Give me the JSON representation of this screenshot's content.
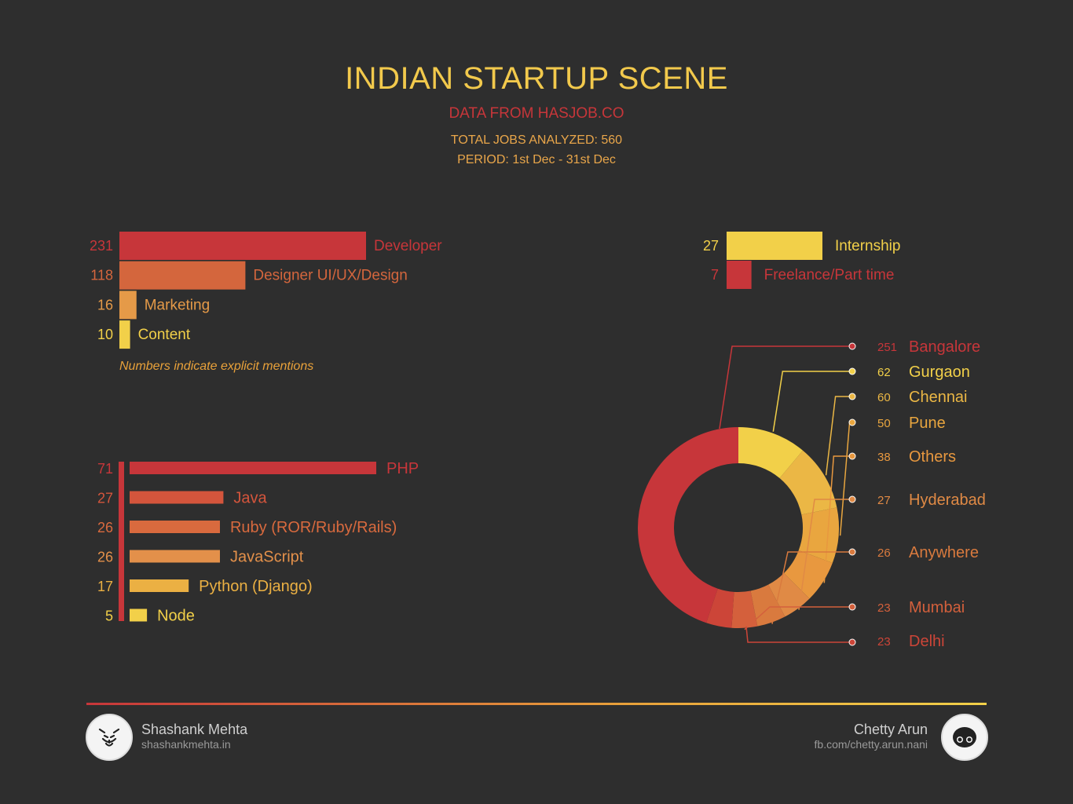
{
  "header": {
    "title": "INDIAN STARTUP SCENE",
    "subtitle": "DATA FROM HASJOB.CO",
    "total": "TOTAL JOBS ANALYZED: 560",
    "period": "PERIOD: 1st Dec - 31st Dec"
  },
  "colors": {
    "red": "#c7363a",
    "orange_red": "#d45a3c",
    "orange": "#e08a45",
    "amber": "#e8a13a",
    "yellow": "#f2d049"
  },
  "chart_data": [
    {
      "type": "bar",
      "orientation": "horizontal",
      "categories": [
        "Developer",
        "Designer UI/UX/Design",
        "Marketing",
        "Content"
      ],
      "values": [
        231,
        118,
        16,
        10
      ],
      "colors": [
        "#c7363a",
        "#d4663d",
        "#e59a48",
        "#f2d049"
      ],
      "note": "Numbers indicate explicit mentions"
    },
    {
      "type": "bar",
      "orientation": "horizontal",
      "categories": [
        "Internship",
        "Freelance/Part time"
      ],
      "values": [
        27,
        7
      ],
      "colors": [
        "#f2d049",
        "#c7363a"
      ]
    },
    {
      "type": "bar",
      "orientation": "horizontal",
      "categories": [
        "PHP",
        "Java",
        "Ruby (ROR/Ruby/Rails)",
        "JavaScript",
        "Python (Django)",
        "Node"
      ],
      "values": [
        71,
        27,
        26,
        26,
        17,
        5
      ],
      "colors": [
        "#c7363a",
        "#d4553c",
        "#d96a3e",
        "#e3904a",
        "#ebb043",
        "#f2d049"
      ]
    },
    {
      "type": "pie",
      "donut": true,
      "categories": [
        "Bangalore",
        "Gurgaon",
        "Chennai",
        "Pune",
        "Others",
        "Hyderabad",
        "Anywhere",
        "Mumbai",
        "Delhi"
      ],
      "values": [
        251,
        62,
        60,
        50,
        38,
        27,
        26,
        23,
        23
      ],
      "colors": [
        "#c7363a",
        "#f2d049",
        "#ebb745",
        "#e9a63f",
        "#e8983f",
        "#e08a45",
        "#d97a3e",
        "#d4603c",
        "#cc4538"
      ]
    }
  ],
  "footer": {
    "left_name": "Shashank Mehta",
    "left_url": "shashankmehta.in",
    "right_name": "Chetty Arun",
    "right_url": "fb.com/chetty.arun.nani"
  }
}
